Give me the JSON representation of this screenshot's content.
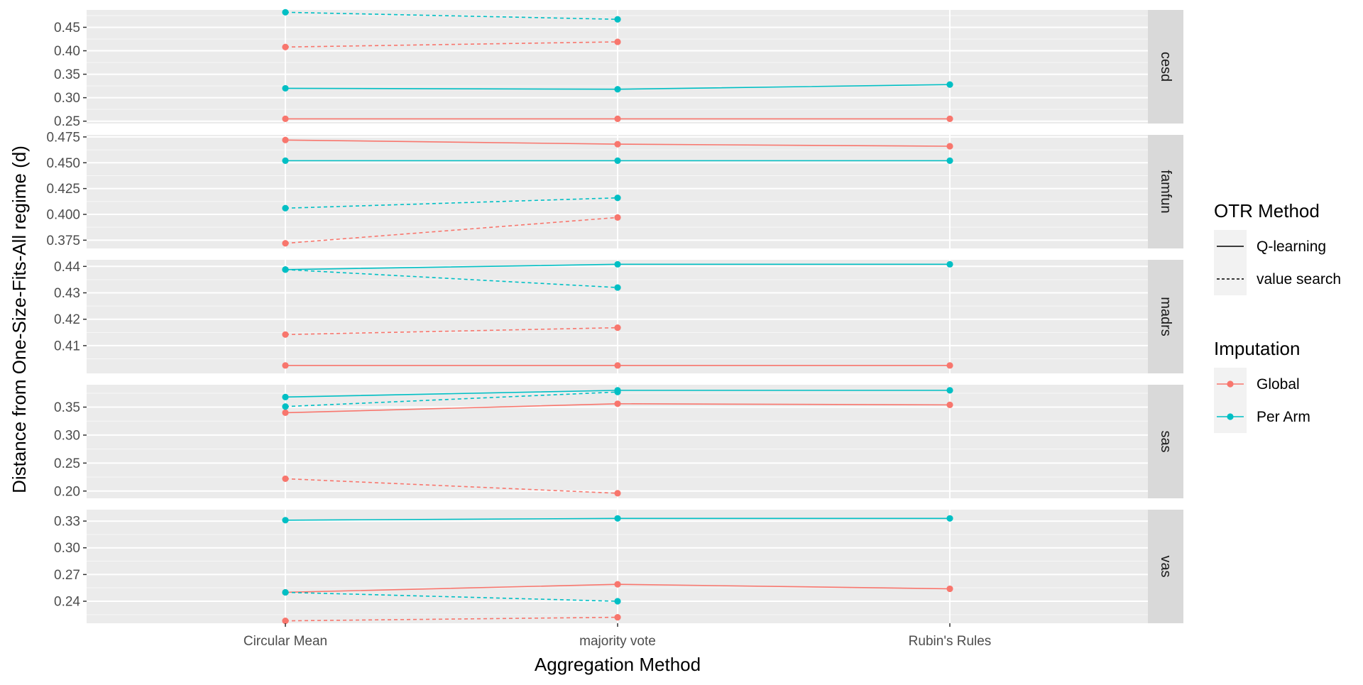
{
  "chart_data": {
    "type": "line",
    "xlabel": "Aggregation Method",
    "ylabel": "Distance from One-Size-Fits-All regime (d)",
    "categories": [
      "Circular Mean",
      "majority vote",
      "Rubin's Rules"
    ],
    "grid": true,
    "legend_position": "right",
    "legends": [
      {
        "title": "OTR Method",
        "entries": [
          {
            "label": "Q-learning",
            "linetype": "solid"
          },
          {
            "label": "value search",
            "linetype": "dashed"
          }
        ]
      },
      {
        "title": "Imputation",
        "entries": [
          {
            "label": "Global",
            "color": "#F8766D"
          },
          {
            "label": "Per Arm",
            "color": "#00BFC4"
          }
        ]
      }
    ],
    "panels": [
      {
        "strip": "cesd",
        "ylim": [
          0.245,
          0.487
        ],
        "yticks": [
          0.25,
          0.3,
          0.35,
          0.4,
          0.45
        ],
        "yticklabels": [
          "0.25",
          "0.30",
          "0.35",
          "0.40",
          "0.45"
        ],
        "series": [
          {
            "method": "Q-learning",
            "imputation": "Global",
            "values": [
              0.255,
              0.255,
              0.255
            ]
          },
          {
            "method": "Q-learning",
            "imputation": "Per Arm",
            "values": [
              0.32,
              0.318,
              0.328
            ]
          },
          {
            "method": "value search",
            "imputation": "Global",
            "values": [
              0.408,
              0.419,
              null
            ]
          },
          {
            "method": "value search",
            "imputation": "Per Arm",
            "values": [
              0.482,
              0.467,
              null
            ]
          }
        ]
      },
      {
        "strip": "famfun",
        "ylim": [
          0.367,
          0.477
        ],
        "yticks": [
          0.375,
          0.4,
          0.425,
          0.45,
          0.475
        ],
        "yticklabels": [
          "0.375",
          "0.400",
          "0.425",
          "0.450",
          "0.475"
        ],
        "series": [
          {
            "method": "Q-learning",
            "imputation": "Global",
            "values": [
              0.472,
              0.468,
              0.466
            ]
          },
          {
            "method": "Q-learning",
            "imputation": "Per Arm",
            "values": [
              0.452,
              0.452,
              0.452
            ]
          },
          {
            "method": "value search",
            "imputation": "Global",
            "values": [
              0.372,
              0.397,
              null
            ]
          },
          {
            "method": "value search",
            "imputation": "Per Arm",
            "values": [
              0.406,
              0.416,
              null
            ]
          }
        ]
      },
      {
        "strip": "madrs",
        "ylim": [
          0.3995,
          0.4425
        ],
        "yticks": [
          0.41,
          0.42,
          0.43,
          0.44
        ],
        "yticklabels": [
          "0.41",
          "0.42",
          "0.43",
          "0.44"
        ],
        "series": [
          {
            "method": "Q-learning",
            "imputation": "Global",
            "values": [
              0.4025,
              0.4025,
              0.4025
            ]
          },
          {
            "method": "Q-learning",
            "imputation": "Per Arm",
            "values": [
              0.4388,
              0.4408,
              0.4408
            ]
          },
          {
            "method": "value search",
            "imputation": "Global",
            "values": [
              0.4142,
              0.4168,
              null
            ]
          },
          {
            "method": "value search",
            "imputation": "Per Arm",
            "values": [
              0.4388,
              0.432,
              null
            ]
          }
        ]
      },
      {
        "strip": "sas",
        "ylim": [
          0.187,
          0.39
        ],
        "yticks": [
          0.2,
          0.25,
          0.3,
          0.35
        ],
        "yticklabels": [
          "0.20",
          "0.25",
          "0.30",
          "0.35"
        ],
        "series": [
          {
            "method": "Q-learning",
            "imputation": "Global",
            "values": [
              0.34,
              0.356,
              0.354
            ]
          },
          {
            "method": "Q-learning",
            "imputation": "Per Arm",
            "values": [
              0.368,
              0.38,
              0.38
            ]
          },
          {
            "method": "value search",
            "imputation": "Global",
            "values": [
              0.222,
              0.196,
              null
            ]
          },
          {
            "method": "value search",
            "imputation": "Per Arm",
            "values": [
              0.351,
              0.377,
              null
            ]
          }
        ]
      },
      {
        "strip": "vas",
        "ylim": [
          0.2153,
          0.3428
        ],
        "yticks": [
          0.24,
          0.27,
          0.3,
          0.33
        ],
        "yticklabels": [
          "0.24",
          "0.27",
          "0.30",
          "0.33"
        ],
        "series": [
          {
            "method": "Q-learning",
            "imputation": "Global",
            "values": [
              0.25,
              0.259,
              0.254
            ]
          },
          {
            "method": "Q-learning",
            "imputation": "Per Arm",
            "values": [
              0.331,
              0.333,
              0.333
            ]
          },
          {
            "method": "value search",
            "imputation": "Global",
            "values": [
              0.218,
              0.222,
              null
            ]
          },
          {
            "method": "value search",
            "imputation": "Per Arm",
            "values": [
              0.25,
              0.24,
              null
            ]
          }
        ]
      }
    ]
  }
}
